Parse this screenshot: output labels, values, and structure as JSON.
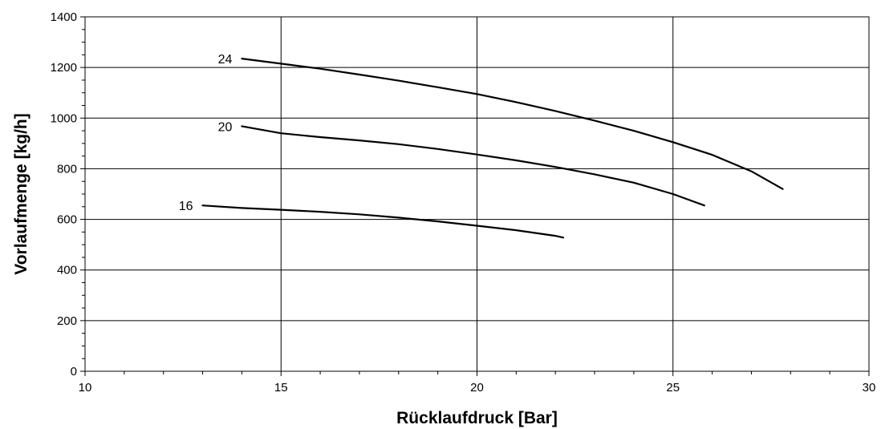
{
  "chart_data": {
    "type": "line",
    "title": "",
    "xlabel": "Rücklaufdruck [Bar]",
    "ylabel": "Vorlaufmenge [kg/h]",
    "xlim": [
      10,
      30
    ],
    "ylim": [
      0,
      1400
    ],
    "xticks": [
      10,
      15,
      20,
      25,
      30
    ],
    "yticks": [
      0,
      200,
      400,
      600,
      800,
      1000,
      1200,
      1400
    ],
    "x_minor_step": 1,
    "y_minor_step": 50,
    "grid": true,
    "legend": "none",
    "series": [
      {
        "name": "24",
        "x": [
          14,
          15,
          16,
          17,
          18,
          19,
          20,
          21,
          22,
          23,
          24,
          25,
          26,
          27,
          27.8
        ],
        "y": [
          1235,
          1215,
          1195,
          1172,
          1148,
          1122,
          1095,
          1063,
          1028,
          990,
          950,
          905,
          855,
          790,
          720
        ]
      },
      {
        "name": "20",
        "x": [
          14,
          15,
          16,
          17,
          18,
          19,
          20,
          21,
          22,
          23,
          24,
          25,
          25.8
        ],
        "y": [
          968,
          940,
          925,
          912,
          897,
          878,
          856,
          833,
          807,
          778,
          745,
          700,
          655
        ]
      },
      {
        "name": "16",
        "x": [
          13,
          14,
          15,
          16,
          17,
          18,
          19,
          20,
          21,
          22,
          22.2
        ],
        "y": [
          655,
          645,
          638,
          630,
          620,
          607,
          592,
          575,
          557,
          535,
          528
        ]
      }
    ]
  }
}
